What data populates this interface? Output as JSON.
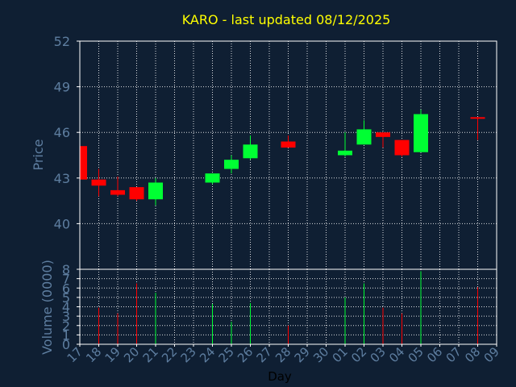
{
  "title": "KARO - last updated 08/12/2025",
  "colors": {
    "background": "#0f1f33",
    "axis": "#ffffff",
    "grid": "#ffffff",
    "title": "#ffff00",
    "label": "#5e7ea0",
    "up": "#00ff33",
    "down": "#ff0000"
  },
  "chart_data": [
    {
      "type": "candlestick",
      "ylabel": "Price",
      "ylim": [
        37,
        52
      ],
      "yticks": [
        40,
        43,
        46,
        49,
        52
      ],
      "grid": true,
      "days": [
        "17",
        "18",
        "19",
        "20",
        "21",
        "22",
        "23",
        "24",
        "25",
        "26",
        "27",
        "28",
        "29",
        "30",
        "01",
        "02",
        "03",
        "04",
        "05",
        "06",
        "07",
        "08",
        "09"
      ],
      "candles": [
        {
          "day": "17",
          "open": 45.1,
          "high": 45.1,
          "low": 42.9,
          "close": 42.9
        },
        {
          "day": "18",
          "open": 42.9,
          "high": 43.6,
          "low": 41.8,
          "close": 42.5
        },
        {
          "day": "19",
          "open": 42.2,
          "high": 43.1,
          "low": 41.8,
          "close": 41.9
        },
        {
          "day": "20",
          "open": 42.4,
          "high": 42.4,
          "low": 41.5,
          "close": 41.6
        },
        {
          "day": "21",
          "open": 41.6,
          "high": 43.0,
          "low": 41.2,
          "close": 42.7
        },
        {
          "day": "24",
          "open": 42.7,
          "high": 43.3,
          "low": 42.6,
          "close": 43.3
        },
        {
          "day": "25",
          "open": 43.6,
          "high": 44.5,
          "low": 43.3,
          "close": 44.2
        },
        {
          "day": "26",
          "open": 44.3,
          "high": 45.8,
          "low": 44.2,
          "close": 45.2
        },
        {
          "day": "28",
          "open": 45.4,
          "high": 45.8,
          "low": 45.0,
          "close": 45.0
        },
        {
          "day": "01",
          "open": 44.5,
          "high": 46.0,
          "low": 44.4,
          "close": 44.8
        },
        {
          "day": "02",
          "open": 45.2,
          "high": 46.8,
          "low": 45.2,
          "close": 46.2
        },
        {
          "day": "03",
          "open": 46.0,
          "high": 46.0,
          "low": 45.0,
          "close": 45.7
        },
        {
          "day": "04",
          "open": 45.5,
          "high": 45.5,
          "low": 44.4,
          "close": 44.5
        },
        {
          "day": "05",
          "open": 44.7,
          "high": 47.5,
          "low": 44.7,
          "close": 47.2
        },
        {
          "day": "08",
          "open": 47.0,
          "high": 47.0,
          "low": 45.5,
          "close": 46.9
        }
      ]
    },
    {
      "type": "bar",
      "ylabel": "Volume (0000)",
      "xlabel": "Day",
      "ylim": [
        0,
        8
      ],
      "yticks": [
        0,
        1,
        2,
        3,
        4,
        5,
        6,
        7,
        8
      ],
      "grid": true,
      "volumes": [
        {
          "day": "18",
          "value": 3.9,
          "direction": "down"
        },
        {
          "day": "19",
          "value": 3.3,
          "direction": "down"
        },
        {
          "day": "20",
          "value": 6.5,
          "direction": "down"
        },
        {
          "day": "21",
          "value": 5.5,
          "direction": "up"
        },
        {
          "day": "24",
          "value": 4.3,
          "direction": "up"
        },
        {
          "day": "25",
          "value": 2.4,
          "direction": "up"
        },
        {
          "day": "26",
          "value": 4.4,
          "direction": "up"
        },
        {
          "day": "28",
          "value": 2.0,
          "direction": "down"
        },
        {
          "day": "01",
          "value": 5.0,
          "direction": "up"
        },
        {
          "day": "02",
          "value": 6.5,
          "direction": "up"
        },
        {
          "day": "03",
          "value": 3.9,
          "direction": "down"
        },
        {
          "day": "04",
          "value": 3.3,
          "direction": "down"
        },
        {
          "day": "05",
          "value": 7.8,
          "direction": "up"
        },
        {
          "day": "08",
          "value": 6.1,
          "direction": "down"
        }
      ]
    }
  ]
}
